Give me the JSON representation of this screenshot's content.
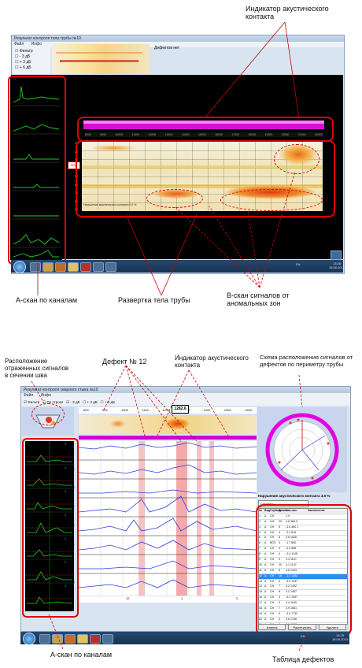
{
  "annotations": {
    "acoustic_contact_indicator_top": "Индикатор акустического\nконтакта",
    "a_scan_channels_top": "А-скан по каналам",
    "pipe_body_sweep": "Развертка тела трубы",
    "b_scan_anomalies": "В-скан сигналов от\nаномальных зон",
    "reflected_signals_location": "Расположение\nотраженных сигналов\nв сечении шва",
    "defect_12": "Дефект  № 12",
    "acoustic_contact_indicator_bottom": "Индикатор акустического\nконтакта",
    "defect_scheme": "Схема расположения сигналов от\nдефектов по периметру трубы",
    "a_scan_channels_bottom": "А-скан по каналам",
    "defect_table": "Таблица  дефектов"
  },
  "top_window": {
    "title": "Результат контроля тела трубы №10",
    "menu": [
      "Файл",
      "Инфо"
    ],
    "filters": [
      "Фильтр",
      "- 3 дБ",
      "+ 3 дБ",
      "+ 6 дБ"
    ],
    "defects_label": "Дефектов нет",
    "scan_side_badge": "W11",
    "contact_caption": "Нарушение акустического контакта 0.5 %",
    "x_ticks": [
      "8000",
      "9000",
      "10000",
      "11000",
      "12000",
      "13000",
      "14000",
      "15000",
      "16000",
      "17000",
      "18000",
      "19000",
      "20000",
      "21000",
      "22000"
    ],
    "y_ticks": [
      "10",
      "20",
      "30",
      "40",
      "50",
      "60",
      "70",
      "80",
      "90"
    ],
    "lang": "EN",
    "clock_time": "13:26",
    "clock_date": "18.06.2013"
  },
  "bottom_window": {
    "title": "Результат контроля сварного стыка №10",
    "menu": [
      "Файл",
      "Инфо"
    ],
    "filters": [
      "Фильтр",
      "По строке",
      "- 3 дБ",
      "+ 3 дБ",
      "+ 6 дБ"
    ],
    "position_readout": "1282.6",
    "x_ticks": [
      "800",
      "900",
      "1000",
      "1100",
      "1200",
      "1300",
      "1400",
      "1500",
      "1600"
    ],
    "channels": [
      "К1",
      "К2",
      "К3",
      "К4",
      "К5",
      "К6",
      "К7",
      "К8"
    ],
    "bottom_ticks": [
      "12",
      "1",
      "2"
    ],
    "ascan_labels": [
      "1",
      "1",
      "1",
      "1",
      "1",
      "1",
      "1"
    ],
    "contact_caption": "Нарушение акустического контакта 3.0 %",
    "signals_select": "Сигналы",
    "defect_table": {
      "headers": [
        "№",
        "Вид",
        "Глубина",
        "Длина",
        "Нач.поз.",
        "Заключение"
      ],
      "rows": [
        [
          "1",
          "А",
          "СН",
          "",
          "1.9",
          ""
        ],
        [
          "2",
          "А",
          "СН",
          "20",
          "4.6  365.9",
          ""
        ],
        [
          "3",
          "А",
          "СН",
          "5",
          "-3.6  460  1",
          ""
        ],
        [
          "4",
          "А",
          "СН",
          "4",
          "-2.4  516",
          ""
        ],
        [
          "5",
          "А",
          "СН",
          "8",
          "3.8  1626",
          ""
        ],
        [
          "6",
          "А",
          "ВОЗ",
          "4",
          "-1.7  650",
          ""
        ],
        [
          "7",
          "А",
          "СН",
          "4",
          "-2.4  958",
          ""
        ],
        [
          "8",
          "А",
          "СН",
          "4",
          "-2.4  1146",
          ""
        ],
        [
          "9",
          "А",
          "СН",
          "3",
          "4.4  1110",
          ""
        ],
        [
          "10",
          "А",
          "СН",
          "20",
          "4.1  1147",
          ""
        ],
        [
          "11",
          "А",
          "СН",
          "8",
          "4.6  1203",
          ""
        ],
        [
          "12",
          "А",
          "СН",
          "18",
          "-1.2  1282",
          ""
        ],
        [
          "13",
          "А",
          "СН",
          "3",
          "-3.9  1337",
          ""
        ],
        [
          "14",
          "А",
          "СН",
          "7",
          "5.2  1432",
          ""
        ],
        [
          "15",
          "А",
          "СН",
          "8",
          "3.2  1487",
          ""
        ],
        [
          "16",
          "А",
          "СН",
          "3",
          "-3.2  1597",
          ""
        ],
        [
          "17",
          "А",
          "СН",
          "3",
          "4.4  1645",
          ""
        ],
        [
          "18",
          "А",
          "СН",
          "7",
          "3.9  1681",
          ""
        ],
        [
          "19",
          "А",
          "СН",
          "3",
          "-4.0  1732",
          ""
        ],
        [
          "20",
          "А",
          "СН",
          "3",
          "3.6  1766",
          ""
        ],
        [
          "21",
          "А",
          "СН",
          "5",
          "3.1  1800",
          ""
        ]
      ],
      "selected_row": 11
    },
    "buttons": [
      "Анализ",
      "Распечатать",
      "Удалить"
    ],
    "lang": "EN",
    "clock_time": "15:29",
    "clock_date": "18.06.2013"
  }
}
